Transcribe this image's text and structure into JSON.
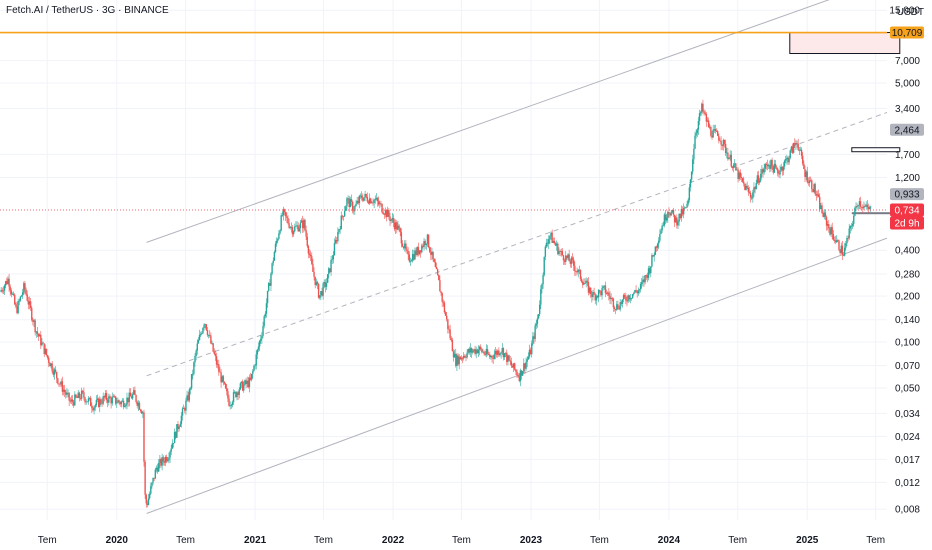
{
  "chart_data": {
    "type": "candlestick",
    "title": "Fetch.AI / TetherUS · 3G · BINANCE",
    "currency": "USDT",
    "y_scale": "log",
    "ylim": [
      0.0068,
      17.5
    ],
    "xlim": [
      "2019-02-26",
      "2025-07-31"
    ],
    "y_ticks": [
      {
        "value": 15,
        "label": "15,000"
      },
      {
        "value": 7,
        "label": "7,000"
      },
      {
        "value": 5,
        "label": "5,000"
      },
      {
        "value": 3.4,
        "label": "3,400"
      },
      {
        "value": 1.7,
        "label": "1,700"
      },
      {
        "value": 1.2,
        "label": "1,200"
      },
      {
        "value": 0.4,
        "label": "0,400"
      },
      {
        "value": 0.28,
        "label": "0,280"
      },
      {
        "value": 0.2,
        "label": "0,200"
      },
      {
        "value": 0.14,
        "label": "0,140"
      },
      {
        "value": 0.1,
        "label": "0,100"
      },
      {
        "value": 0.07,
        "label": "0,070"
      },
      {
        "value": 0.05,
        "label": "0,050"
      },
      {
        "value": 0.034,
        "label": "0,034"
      },
      {
        "value": 0.024,
        "label": "0,024"
      },
      {
        "value": 0.017,
        "label": "0,017"
      },
      {
        "value": 0.012,
        "label": "0,012"
      },
      {
        "value": 0.008,
        "label": "0,008"
      }
    ],
    "x_ticks": [
      {
        "date": "2019-07-01",
        "label": "Tem",
        "year": false
      },
      {
        "date": "2020-01-01",
        "label": "2020",
        "year": true
      },
      {
        "date": "2020-07-01",
        "label": "Tem",
        "year": false
      },
      {
        "date": "2021-01-01",
        "label": "2021",
        "year": true
      },
      {
        "date": "2021-07-01",
        "label": "Tem",
        "year": false
      },
      {
        "date": "2022-01-01",
        "label": "2022",
        "year": true
      },
      {
        "date": "2022-07-01",
        "label": "Tem",
        "year": false
      },
      {
        "date": "2023-01-01",
        "label": "2023",
        "year": true
      },
      {
        "date": "2023-07-01",
        "label": "Tem",
        "year": false
      },
      {
        "date": "2024-01-01",
        "label": "2024",
        "year": true
      },
      {
        "date": "2024-07-01",
        "label": "Tem",
        "year": false
      },
      {
        "date": "2025-01-01",
        "label": "2025",
        "year": true
      },
      {
        "date": "2025-07-01",
        "label": "Tem",
        "year": false
      }
    ],
    "price_path": [
      [
        "2019-03-01",
        0.22
      ],
      [
        "2019-03-20",
        0.26
      ],
      [
        "2019-04-10",
        0.16
      ],
      [
        "2019-05-01",
        0.23
      ],
      [
        "2019-06-01",
        0.12
      ],
      [
        "2019-07-01",
        0.08
      ],
      [
        "2019-08-01",
        0.055
      ],
      [
        "2019-09-01",
        0.04
      ],
      [
        "2019-10-01",
        0.045
      ],
      [
        "2019-11-01",
        0.038
      ],
      [
        "2019-12-01",
        0.043
      ],
      [
        "2020-01-15",
        0.04
      ],
      [
        "2020-02-15",
        0.045
      ],
      [
        "2020-03-10",
        0.035
      ],
      [
        "2020-03-15",
        0.01
      ],
      [
        "2020-03-20",
        0.0085
      ],
      [
        "2020-04-15",
        0.015
      ],
      [
        "2020-05-15",
        0.018
      ],
      [
        "2020-06-15",
        0.03
      ],
      [
        "2020-07-10",
        0.045
      ],
      [
        "2020-07-30",
        0.09
      ],
      [
        "2020-08-20",
        0.14
      ],
      [
        "2020-09-10",
        0.09
      ],
      [
        "2020-10-01",
        0.06
      ],
      [
        "2020-10-25",
        0.04
      ],
      [
        "2020-11-20",
        0.05
      ],
      [
        "2020-12-20",
        0.055
      ],
      [
        "2021-01-20",
        0.12
      ],
      [
        "2021-02-20",
        0.38
      ],
      [
        "2021-03-15",
        0.7
      ],
      [
        "2021-04-10",
        0.55
      ],
      [
        "2021-05-10",
        0.6
      ],
      [
        "2021-06-01",
        0.3
      ],
      [
        "2021-06-20",
        0.2
      ],
      [
        "2021-07-10",
        0.25
      ],
      [
        "2021-08-10",
        0.55
      ],
      [
        "2021-09-01",
        0.85
      ],
      [
        "2021-09-20",
        0.75
      ],
      [
        "2021-10-10",
        0.9
      ],
      [
        "2021-11-15",
        0.85
      ],
      [
        "2021-12-15",
        0.7
      ],
      [
        "2022-01-15",
        0.55
      ],
      [
        "2022-02-10",
        0.35
      ],
      [
        "2022-03-10",
        0.4
      ],
      [
        "2022-04-01",
        0.48
      ],
      [
        "2022-05-01",
        0.25
      ],
      [
        "2022-05-25",
        0.13
      ],
      [
        "2022-06-15",
        0.075
      ],
      [
        "2022-07-15",
        0.085
      ],
      [
        "2022-08-15",
        0.09
      ],
      [
        "2022-09-15",
        0.08
      ],
      [
        "2022-10-15",
        0.09
      ],
      [
        "2022-11-10",
        0.07
      ],
      [
        "2022-12-01",
        0.06
      ],
      [
        "2022-12-30",
        0.085
      ],
      [
        "2023-01-20",
        0.15
      ],
      [
        "2023-02-10",
        0.45
      ],
      [
        "2023-02-20",
        0.5
      ],
      [
        "2023-03-20",
        0.38
      ],
      [
        "2023-04-20",
        0.33
      ],
      [
        "2023-05-20",
        0.25
      ],
      [
        "2023-06-15",
        0.2
      ],
      [
        "2023-07-15",
        0.22
      ],
      [
        "2023-08-15",
        0.17
      ],
      [
        "2023-09-15",
        0.2
      ],
      [
        "2023-10-15",
        0.22
      ],
      [
        "2023-11-10",
        0.3
      ],
      [
        "2023-12-10",
        0.55
      ],
      [
        "2023-12-30",
        0.75
      ],
      [
        "2024-01-20",
        0.62
      ],
      [
        "2024-02-20",
        0.78
      ],
      [
        "2024-03-10",
        2.3
      ],
      [
        "2024-03-28",
        3.4
      ],
      [
        "2024-04-20",
        2.4
      ],
      [
        "2024-05-15",
        2.2
      ],
      [
        "2024-06-10",
        1.6
      ],
      [
        "2024-07-05",
        1.2
      ],
      [
        "2024-08-05",
        0.9
      ],
      [
        "2024-08-25",
        1.2
      ],
      [
        "2024-09-20",
        1.5
      ],
      [
        "2024-10-15",
        1.3
      ],
      [
        "2024-11-10",
        1.6
      ],
      [
        "2024-12-05",
        2.1
      ],
      [
        "2024-12-25",
        1.3
      ],
      [
        "2025-01-20",
        1.0
      ],
      [
        "2025-02-10",
        0.7
      ],
      [
        "2025-03-01",
        0.55
      ],
      [
        "2025-03-20",
        0.45
      ],
      [
        "2025-04-07",
        0.38
      ],
      [
        "2025-04-25",
        0.55
      ],
      [
        "2025-05-15",
        0.85
      ],
      [
        "2025-06-05",
        0.75
      ],
      [
        "2025-06-20",
        0.734
      ]
    ],
    "channel_lines": [
      {
        "style": "solid",
        "from": [
          "2020-03-20",
          0.0075
        ],
        "to": [
          "2025-07-31",
          0.48
        ]
      },
      {
        "style": "dashed",
        "from": [
          "2020-03-20",
          0.06
        ],
        "to": [
          "2025-07-31",
          3.2
        ]
      },
      {
        "style": "solid",
        "from": [
          "2020-03-20",
          0.45
        ],
        "to": [
          "2025-07-31",
          24
        ]
      }
    ],
    "horizontal_lines": [
      {
        "value": 10.709,
        "style": "orange"
      },
      {
        "value": 0.734,
        "style": "red-dotted"
      }
    ],
    "price_tags": [
      {
        "value": 10.709,
        "label": "10,709",
        "kind": "orange"
      },
      {
        "value": 2.464,
        "label": "2,464",
        "kind": "grey"
      },
      {
        "value": 0.933,
        "label": "0,933",
        "kind": "grey"
      },
      {
        "value": 0.734,
        "label": "0,734",
        "kind": "red"
      }
    ],
    "countdown": "2d 9h",
    "zones": [
      {
        "kind": "pink-box",
        "y_range": [
          7.8,
          10.709
        ]
      },
      {
        "kind": "outline-box",
        "y_range": [
          1.77,
          1.88
        ]
      },
      {
        "kind": "grey-bar",
        "y_range": [
          0.69,
          0.71
        ]
      }
    ],
    "gridlines": true
  },
  "colors": {
    "up": "#26a69a",
    "down": "#ef5350",
    "orange": "#f7a21b",
    "grid": "#f0f3fa",
    "channel": "#b2b5be",
    "red_tag": "#f23645",
    "grey_tag": "#b2b5be"
  }
}
